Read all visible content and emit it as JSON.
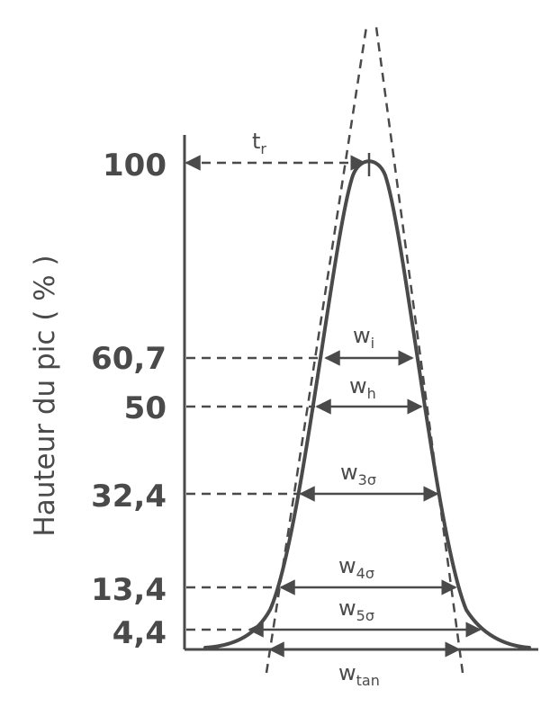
{
  "diagram": {
    "y_axis_label": "Hauteur du pic ( % )",
    "retention_label": {
      "main": "t",
      "sub": "r"
    },
    "ticks": [
      {
        "value": "100"
      },
      {
        "value": "60,7"
      },
      {
        "value": "50"
      },
      {
        "value": "32,4"
      },
      {
        "value": "13,4"
      },
      {
        "value": "4,4"
      }
    ],
    "widths": [
      {
        "main": "w",
        "sub": "i"
      },
      {
        "main": "w",
        "sub": "h"
      },
      {
        "main": "w",
        "sub": "3σ"
      },
      {
        "main": "w",
        "sub": "4σ"
      },
      {
        "main": "w",
        "sub": "5σ"
      },
      {
        "main": "w",
        "sub": "tan"
      }
    ],
    "colors": {
      "ink": "#4a4a4a",
      "background": "#ffffff"
    }
  }
}
